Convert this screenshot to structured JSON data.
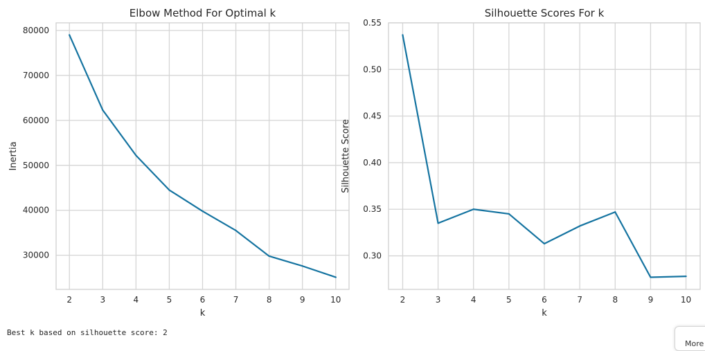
{
  "colors": {
    "line": "#1473a0",
    "grid": "#d5d5d5",
    "frame": "#d0d0d0",
    "text": "#262626"
  },
  "chart_data": [
    {
      "type": "line",
      "title": "Elbow Method For Optimal k",
      "xlabel": "k",
      "ylabel": "Inertia",
      "x": [
        2,
        3,
        4,
        5,
        6,
        7,
        8,
        9,
        10
      ],
      "series": [
        {
          "values": [
            79000,
            62300,
            52200,
            44500,
            39800,
            35500,
            29800,
            27600,
            25100
          ]
        }
      ],
      "xticks": [
        2,
        3,
        4,
        5,
        6,
        7,
        8,
        9,
        10
      ],
      "yticks": [
        30000,
        40000,
        50000,
        60000,
        70000,
        80000
      ],
      "xlim": [
        1.6,
        10.4
      ],
      "ylim": [
        22400,
        81700
      ],
      "grid": true
    },
    {
      "type": "line",
      "title": "Silhouette Scores For k",
      "xlabel": "k",
      "ylabel": "Silhouette Score",
      "x": [
        2,
        3,
        4,
        5,
        6,
        7,
        8,
        9,
        10
      ],
      "series": [
        {
          "values": [
            0.537,
            0.335,
            0.35,
            0.345,
            0.313,
            0.332,
            0.347,
            0.277,
            0.278
          ]
        }
      ],
      "xticks": [
        2,
        3,
        4,
        5,
        6,
        7,
        8,
        9,
        10
      ],
      "yticks": [
        0.3,
        0.35,
        0.4,
        0.45,
        0.5,
        0.55
      ],
      "xlim": [
        1.6,
        10.4
      ],
      "ylim": [
        0.264,
        0.55
      ],
      "grid": true
    }
  ],
  "output": {
    "text": "Best k based on silhouette score: 2"
  },
  "more_button": {
    "label": "More"
  }
}
